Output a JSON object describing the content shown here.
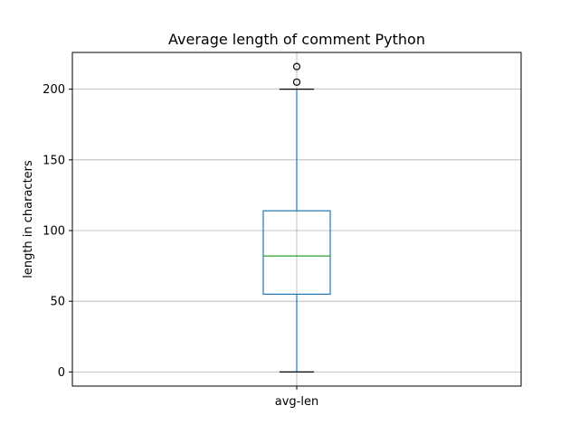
{
  "chart_data": {
    "type": "box",
    "title": "Average length of comment Python",
    "xlabel": "",
    "ylabel": "length in characters",
    "categories": [
      "avg-len"
    ],
    "ylim": [
      -10,
      226
    ],
    "yticks": [
      0,
      50,
      100,
      150,
      200
    ],
    "ytick_labels": [
      "0",
      "50",
      "100",
      "150",
      "200"
    ],
    "grid": true,
    "boxes": [
      {
        "name": "avg-len",
        "whisker_low": 0,
        "q1": 55,
        "median": 82,
        "q3": 114,
        "whisker_high": 200,
        "outliers": [
          205,
          216
        ]
      }
    ],
    "colors": {
      "box": "#1f77b4",
      "median": "#2ca02c",
      "cap": "#000000",
      "grid": "#b0b0b0",
      "outlier": "#000000"
    }
  }
}
